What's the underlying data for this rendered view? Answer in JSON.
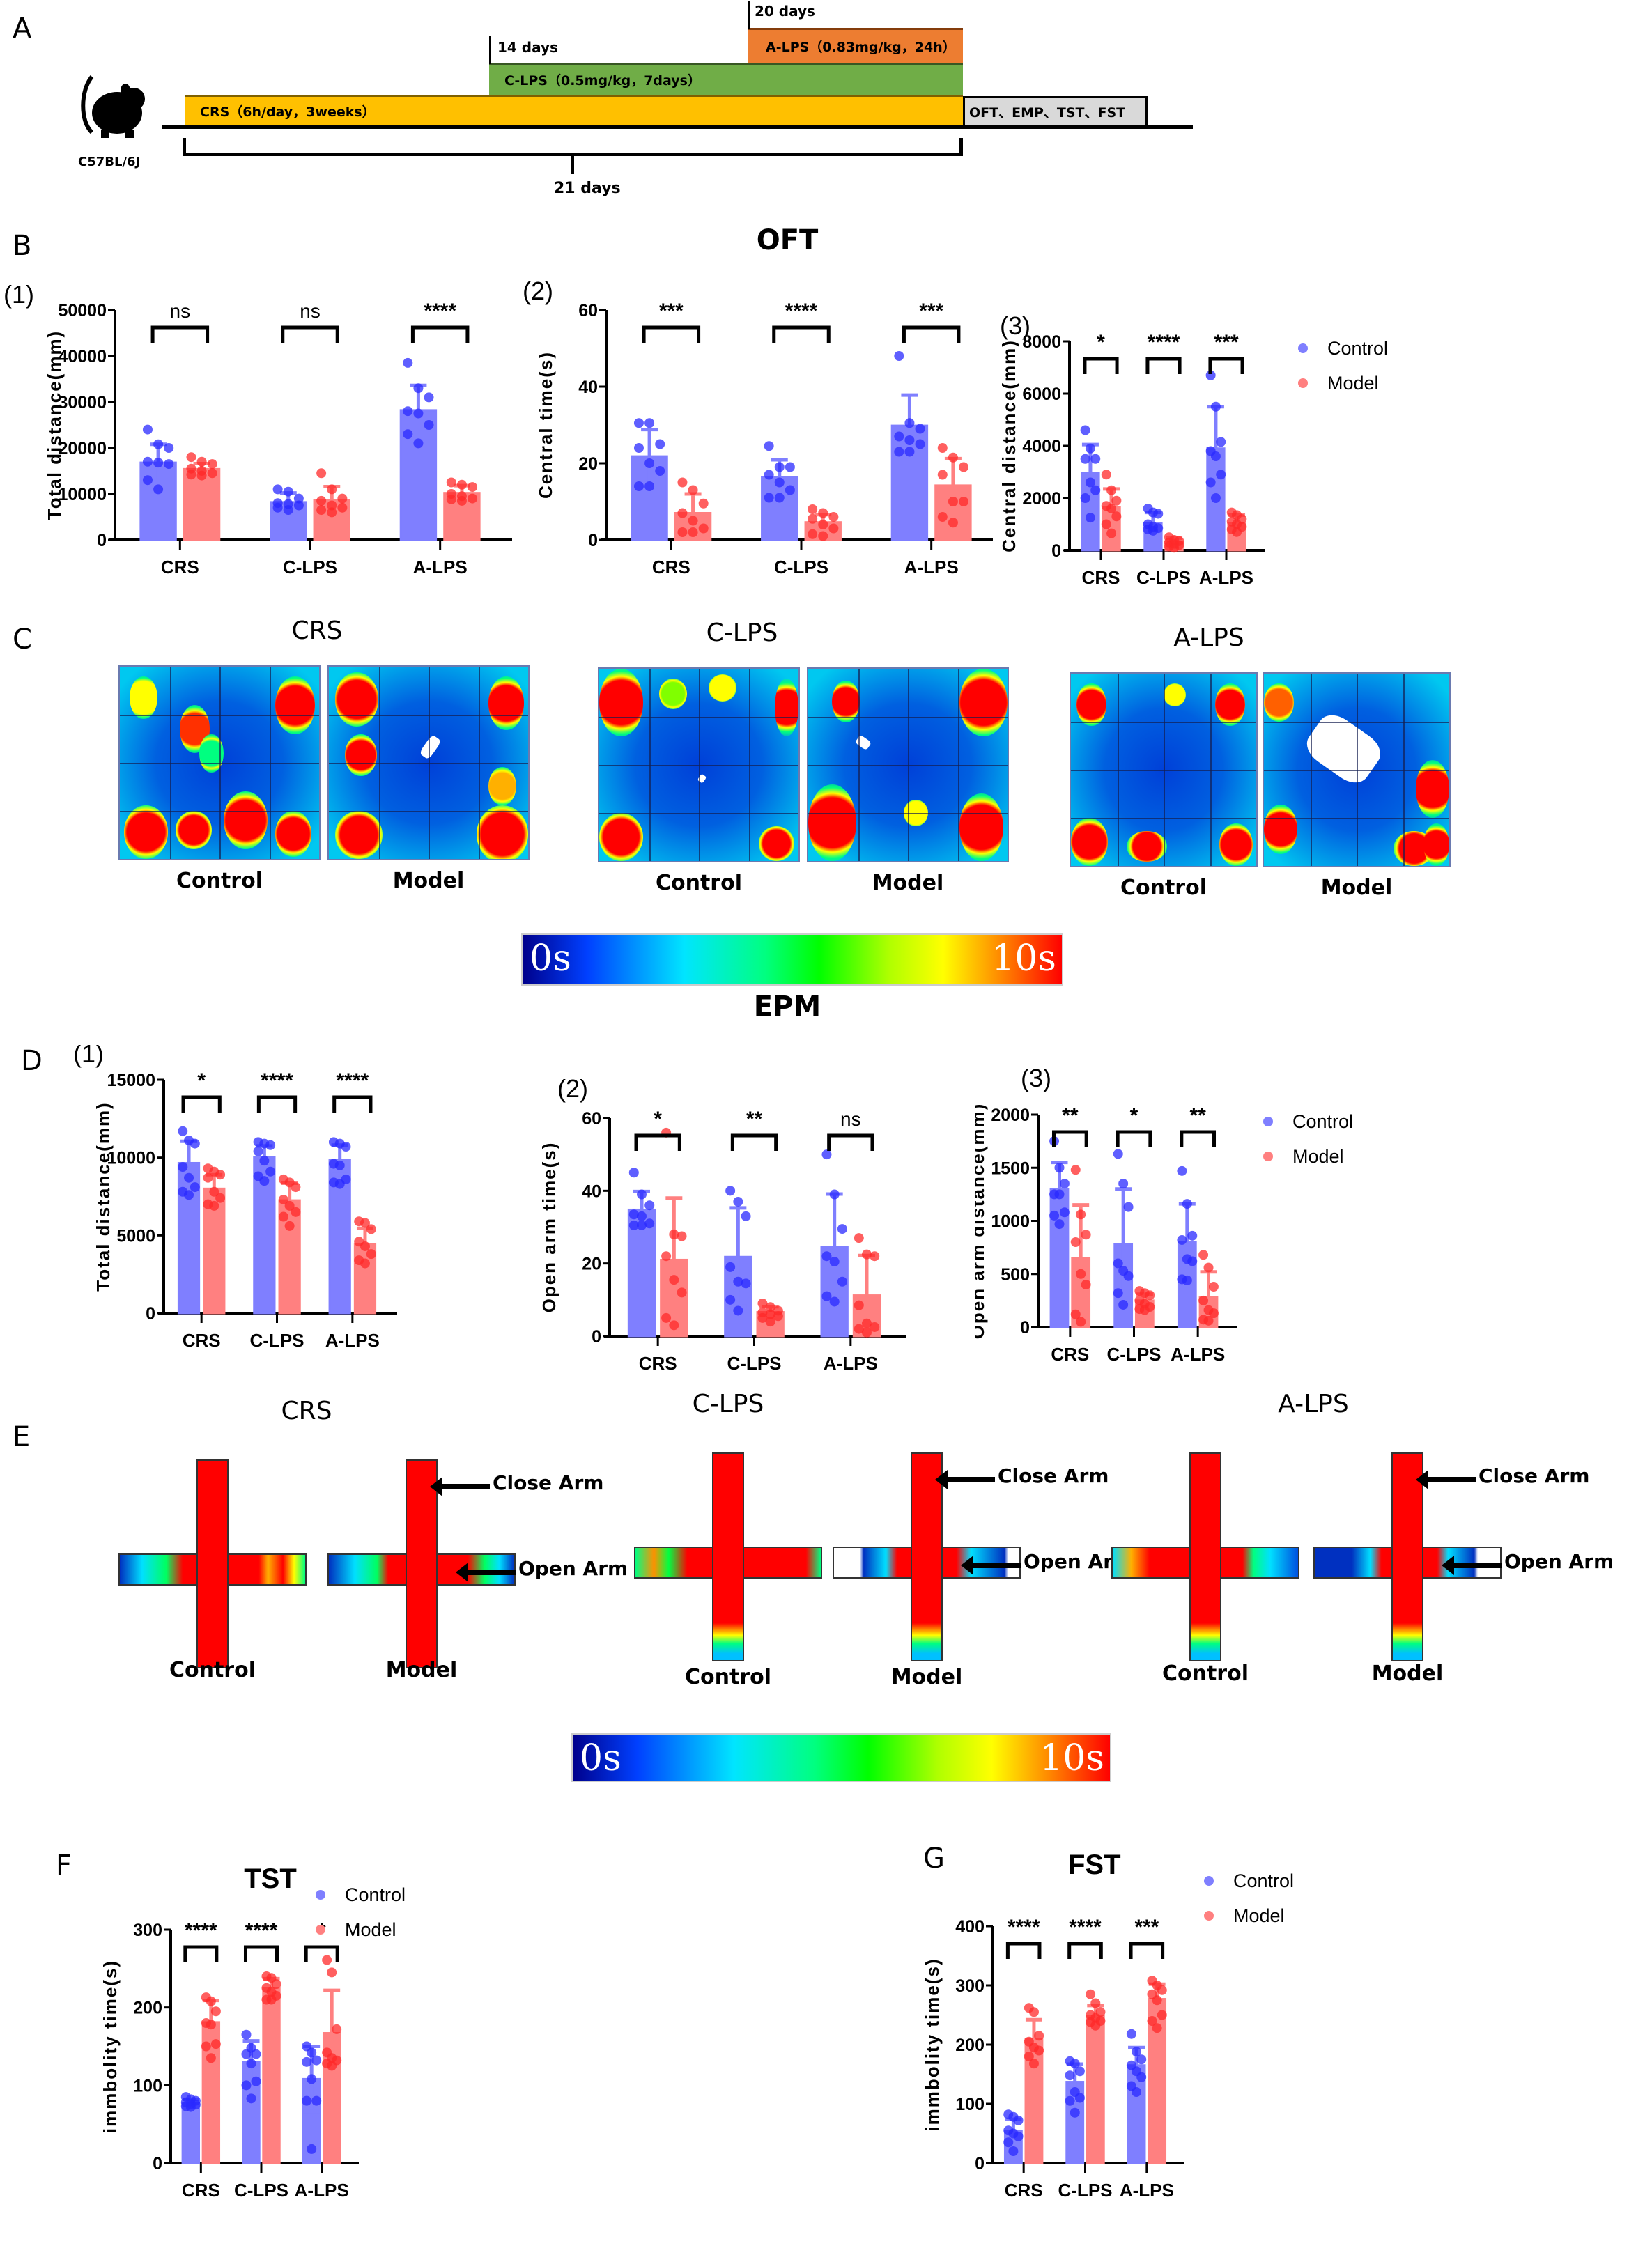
{
  "panels": {
    "A": "A",
    "B": "B",
    "C": "C",
    "D": "D",
    "E": "E",
    "F": "F",
    "G": "G"
  },
  "timeline": {
    "strain": "C57BL/6J",
    "mouse_icon": "mouse-icon",
    "crs_label": "CRS（6h/day，3weeks）",
    "clps_label": "C-LPS（0.5mg/kg，7days）",
    "alps_label": "A-LPS（0.83mg/kg，24h）",
    "tests_label": "OFT、EMP、TST、FST",
    "marker_14": "14 days",
    "marker_20": "20 days",
    "total_span": "21 days",
    "colors": {
      "crs": "#ffc000",
      "clps": "#70ad47",
      "alps": "#ed7d31",
      "tests": "#d9d9d9"
    }
  },
  "sections": {
    "oft_title": "OFT",
    "epm_title": "EPM",
    "tst_title": "TST",
    "fst_title": "FST"
  },
  "legend": {
    "control": "Control",
    "model": "Model"
  },
  "colors": {
    "control": "#7f7fff",
    "control_dark": "#2a2aff",
    "model": "#ff8080",
    "model_dark": "#ff2a2a"
  },
  "heatmaps_oft": {
    "groups": [
      {
        "title": "CRS",
        "control": "Control",
        "model": "Model"
      },
      {
        "title": "C-LPS",
        "control": "Control",
        "model": "Model"
      },
      {
        "title": "A-LPS",
        "control": "Control",
        "model": "Model"
      }
    ],
    "colorbar_min": "0s",
    "colorbar_max": "10s"
  },
  "heatmaps_epm": {
    "groups": [
      {
        "title": "CRS",
        "control": "Control",
        "model": "Model"
      },
      {
        "title": "C-LPS",
        "control": "Control",
        "model": "Model"
      },
      {
        "title": "A-LPS",
        "control": "Control",
        "model": "Model"
      }
    ],
    "close_arm": "Close Arm",
    "open_arm": "Open Arm",
    "colorbar_min": "0s",
    "colorbar_max": "10s"
  },
  "chart_data": [
    {
      "id": "B1",
      "sub": "(1)",
      "type": "bar",
      "title": "",
      "categories": [
        "CRS",
        "C-LPS",
        "A-LPS"
      ],
      "ylabel": "Total distance(mm)",
      "ylim": [
        0,
        50000
      ],
      "yticks": [
        0,
        10000,
        20000,
        30000,
        40000,
        50000
      ],
      "series": [
        {
          "name": "Control",
          "values": [
            16800,
            8200,
            28200
          ],
          "sd": [
            4000,
            2000,
            5400
          ],
          "points": [
            [
              24000,
              20800,
              20000,
              17000,
              16800,
              16500,
              13000,
              11000
            ],
            [
              11000,
              10500,
              9000,
              8000,
              7800,
              7500,
              7000,
              6500
            ],
            [
              38500,
              33000,
              31000,
              28000,
              27500,
              25000,
              23000,
              21000
            ]
          ]
        },
        {
          "name": "Model",
          "values": [
            15400,
            8600,
            10200
          ],
          "sd": [
            1200,
            3000,
            1600
          ],
          "points": [
            [
              18000,
              17000,
              16500,
              15500,
              15000,
              14500,
              14200,
              14000
            ],
            [
              14500,
              11000,
              9000,
              8500,
              7500,
              7000,
              6500,
              6000
            ],
            [
              12500,
              12000,
              11500,
              10000,
              9500,
              9000,
              8800,
              8500
            ]
          ]
        }
      ],
      "significance": [
        "ns",
        "ns",
        "****"
      ],
      "legend": false
    },
    {
      "id": "B2",
      "sub": "(2)",
      "type": "bar",
      "title": "OFT",
      "categories": [
        "CRS",
        "C-LPS",
        "A-LPS"
      ],
      "ylabel": "Central time(s)",
      "ylim": [
        0,
        60
      ],
      "yticks": [
        0,
        20,
        40,
        60
      ],
      "series": [
        {
          "name": "Control",
          "values": [
            21.8,
            16.4,
            29.8
          ],
          "sd": [
            7,
            4.5,
            8
          ],
          "points": [
            [
              30.5,
              30.5,
              25,
              24,
              20,
              18,
              14,
              14
            ],
            [
              24.5,
              19,
              19,
              17,
              15,
              13,
              11,
              11
            ],
            [
              48,
              30.5,
              29,
              27,
              26,
              25,
              23,
              23
            ]
          ]
        },
        {
          "name": "Model",
          "values": [
            7,
            4.6,
            14.2
          ],
          "sd": [
            5,
            2,
            7
          ],
          "points": [
            [
              15,
              13,
              9.5,
              7,
              5,
              3,
              2,
              2
            ],
            [
              8,
              7,
              6,
              5.5,
              4,
              3,
              1.5,
              1
            ],
            [
              24,
              21.5,
              19,
              17,
              10,
              10,
              6,
              4.5
            ]
          ]
        }
      ],
      "significance": [
        "***",
        "****",
        "***"
      ],
      "legend": false
    },
    {
      "id": "B3",
      "sub": "(3)",
      "type": "bar",
      "title": "",
      "categories": [
        "CRS",
        "C-LPS",
        "A-LPS"
      ],
      "ylabel": "Central distance(mm)",
      "ylim": [
        0,
        8000
      ],
      "yticks": [
        0,
        2000,
        4000,
        6000,
        8000
      ],
      "series": [
        {
          "name": "Control",
          "values": [
            2950,
            1050,
            3900
          ],
          "sd": [
            1100,
            400,
            1600
          ],
          "points": [
            [
              4600,
              3900,
              3500,
              3500,
              2600,
              2300,
              2000,
              1250
            ],
            [
              1600,
              1450,
              1400,
              1000,
              900,
              850,
              800,
              750
            ],
            [
              6700,
              5500,
              4150,
              3800,
              3600,
              2900,
              2600,
              2000
            ]
          ]
        },
        {
          "name": "Model",
          "values": [
            1650,
            320,
            1050
          ],
          "sd": [
            700,
            150,
            300
          ],
          "points": [
            [
              2900,
              2300,
              1900,
              1700,
              1600,
              1300,
              1000,
              650
            ],
            [
              500,
              400,
              350,
              300,
              250,
              200,
              150,
              100
            ],
            [
              1450,
              1350,
              1200,
              1100,
              1000,
              900,
              800,
              700
            ]
          ]
        }
      ],
      "significance": [
        "*",
        "****",
        "***"
      ],
      "legend": true
    },
    {
      "id": "D1",
      "sub": "(1)",
      "type": "bar",
      "title": "",
      "categories": [
        "CRS",
        "C-LPS",
        "A-LPS"
      ],
      "ylabel": "Total distance(mm)",
      "ylim": [
        0,
        15000
      ],
      "yticks": [
        0,
        5000,
        10000,
        15000
      ],
      "series": [
        {
          "name": "Control",
          "values": [
            9650,
            10050,
            9850
          ],
          "sd": [
            1400,
            700,
            950
          ],
          "points": [
            [
              11700,
              11100,
              10900,
              9400,
              8700,
              8100,
              7800,
              7600
            ],
            [
              11000,
              10900,
              10800,
              10400,
              9800,
              9100,
              8800,
              8500
            ],
            [
              11000,
              10900,
              10700,
              9600,
              9500,
              8600,
              8400,
              8300
            ]
          ]
        },
        {
          "name": "Model",
          "values": [
            8000,
            7250,
            4450
          ],
          "sd": [
            900,
            1100,
            1000
          ],
          "points": [
            [
              9300,
              9100,
              8900,
              8700,
              7800,
              7400,
              7000,
              6900
            ],
            [
              8600,
              8400,
              8100,
              7300,
              6900,
              6500,
              6200,
              5600
            ],
            [
              5900,
              5800,
              5400,
              4600,
              4300,
              3800,
              3400,
              3200
            ]
          ]
        }
      ],
      "significance": [
        "*",
        "****",
        "****"
      ],
      "legend": false
    },
    {
      "id": "D2",
      "sub": "(2)",
      "type": "bar",
      "title": "EPM",
      "categories": [
        "CRS",
        "C-LPS",
        "A-LPS"
      ],
      "ylabel": "Open arm time(s)",
      "ylim": [
        0,
        60
      ],
      "yticks": [
        0,
        20,
        40,
        60
      ],
      "series": [
        {
          "name": "Control",
          "values": [
            34.8,
            21.8,
            24.6
          ],
          "sd": [
            5,
            13.5,
            14.5
          ],
          "points": [
            [
              45,
              39,
              36,
              33.5,
              33,
              31,
              30.5,
              30.5
            ],
            [
              40,
              37,
              33,
              19,
              15,
              14.5,
              10,
              7
            ],
            [
              50,
              39,
              29.5,
              22,
              20.5,
              15,
              11,
              9.5
            ]
          ]
        },
        {
          "name": "Model",
          "values": [
            21,
            6.6,
            11.2
          ],
          "sd": [
            17,
            1.5,
            11
          ],
          "points": [
            [
              56,
              28,
              27.5,
              22,
              15.5,
              12,
              5,
              3
            ],
            [
              9,
              8,
              7,
              6.5,
              6,
              5.5,
              5,
              4
            ],
            [
              27,
              22.5,
              22,
              8.5,
              3.5,
              2.5,
              2,
              1
            ]
          ]
        }
      ],
      "significance": [
        "*",
        "**",
        "ns"
      ],
      "legend": false
    },
    {
      "id": "D3",
      "sub": "(3)",
      "type": "bar",
      "title": "",
      "categories": [
        "CRS",
        "C-LPS",
        "A-LPS"
      ],
      "ylabel": "Open arm distance(mm)",
      "ylim": [
        0,
        2000
      ],
      "yticks": [
        0,
        500,
        1000,
        1500,
        2000
      ],
      "series": [
        {
          "name": "Control",
          "values": [
            1300,
            780,
            800
          ],
          "sd": [
            250,
            520,
            360
          ],
          "points": [
            [
              1750,
              1500,
              1350,
              1250,
              1250,
              1080,
              1050,
              970
            ],
            [
              1630,
              1350,
              1130,
              600,
              530,
              480,
              320,
              210
            ],
            [
              1470,
              1160,
              860,
              820,
              640,
              620,
              450,
              440
            ]
          ]
        },
        {
          "name": "Model",
          "values": [
            650,
            250,
            280
          ],
          "sd": [
            500,
            60,
            240
          ],
          "points": [
            [
              1480,
              1060,
              870,
              800,
              500,
              400,
              120,
              50
            ],
            [
              340,
              320,
              300,
              250,
              220,
              190,
              170,
              160
            ],
            [
              680,
              560,
              380,
              250,
              160,
              130,
              70,
              60
            ]
          ]
        }
      ],
      "significance": [
        "**",
        "*",
        "**"
      ],
      "legend": true
    },
    {
      "id": "F",
      "sub": "",
      "type": "bar",
      "title": "TST",
      "categories": [
        "CRS",
        "C-LPS",
        "A-LPS"
      ],
      "ylabel": "immbolity time(s)",
      "ylim": [
        0,
        300
      ],
      "yticks": [
        0,
        100,
        200,
        300
      ],
      "series": [
        {
          "name": "Control",
          "values": [
            77,
            130,
            108
          ],
          "sd": [
            5,
            27,
            42
          ],
          "points": [
            [
              85,
              82,
              80,
              78,
              76,
              75,
              73,
              72
            ],
            [
              165,
              148,
              140,
              140,
              128,
              105,
              100,
              83
            ],
            [
              150,
              142,
              132,
              130,
              108,
              80,
              80,
              18
            ]
          ]
        },
        {
          "name": "Model",
          "values": [
            181,
            225,
            167
          ],
          "sd": [
            28,
            12,
            55
          ],
          "points": [
            [
              213,
              208,
              195,
              180,
              178,
              153,
              150,
              135
            ],
            [
              240,
              238,
              230,
              225,
              220,
              215,
              210,
              210
            ],
            [
              261,
              245,
              172,
              142,
              135,
              132,
              128,
              125
            ]
          ]
        }
      ],
      "significance": [
        "****",
        "****",
        "*"
      ],
      "legend": true
    },
    {
      "id": "G",
      "sub": "",
      "type": "bar",
      "title": "FST",
      "categories": [
        "CRS",
        "C-LPS",
        "A-LPS"
      ],
      "ylabel": "immbolity time(s)",
      "ylim": [
        0,
        400
      ],
      "yticks": [
        0,
        100,
        200,
        300,
        400
      ],
      "series": [
        {
          "name": "Control",
          "values": [
            54,
            137,
            165
          ],
          "sd": [
            20,
            30,
            30
          ],
          "points": [
            [
              82,
              78,
              72,
              55,
              50,
              45,
              35,
              20
            ],
            [
              172,
              168,
              155,
              148,
              120,
              110,
              105,
              85
            ],
            [
              218,
              188,
              175,
              165,
              155,
              145,
              130,
              120
            ]
          ]
        },
        {
          "name": "Model",
          "values": [
            210,
            248,
            277
          ],
          "sd": [
            32,
            18,
            25
          ],
          "points": [
            [
              262,
              255,
              215,
              205,
              195,
              190,
              180,
              168
            ],
            [
              285,
              270,
              255,
              250,
              245,
              240,
              238,
              232
            ],
            [
              308,
              300,
              292,
              285,
              275,
              250,
              240,
              228
            ]
          ]
        }
      ],
      "significance": [
        "****",
        "****",
        "***"
      ],
      "legend": true
    }
  ]
}
